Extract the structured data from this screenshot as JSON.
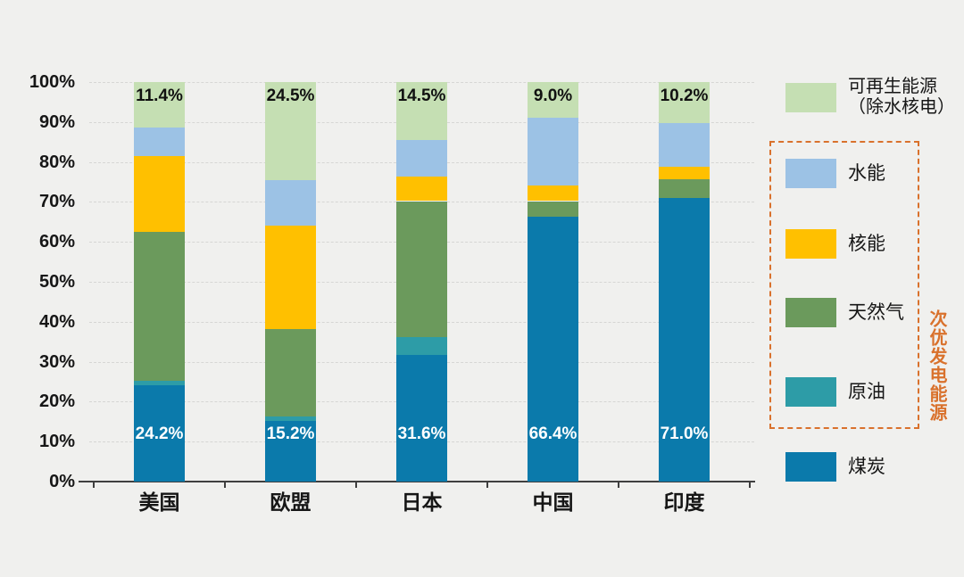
{
  "chart_data": {
    "type": "bar",
    "stacked": true,
    "unit": "%",
    "categories": [
      "美国",
      "欧盟",
      "日本",
      "中国",
      "印度"
    ],
    "series": [
      {
        "key": "coal",
        "name": "煤炭",
        "color": "#0B7AAB",
        "values": [
          24.2,
          15.2,
          31.6,
          66.4,
          71.0
        ]
      },
      {
        "key": "oil",
        "name": "原油",
        "color": "#2D9CA7",
        "values": [
          1.1,
          1.0,
          4.6,
          0.0,
          0.0
        ]
      },
      {
        "key": "gas",
        "name": "天然气",
        "color": "#6B9A5C",
        "values": [
          37.2,
          22.0,
          34.0,
          3.8,
          4.7
        ]
      },
      {
        "key": "nuclear",
        "name": "核能",
        "color": "#FFC000",
        "values": [
          18.9,
          25.8,
          6.1,
          3.8,
          3.0
        ]
      },
      {
        "key": "hydro",
        "name": "水能",
        "color": "#9CC2E5",
        "values": [
          7.2,
          11.5,
          9.2,
          17.0,
          11.1
        ]
      },
      {
        "key": "renewables",
        "name": "可再生能源（除水核电）",
        "color": "#C5DFB3",
        "values": [
          11.4,
          24.5,
          14.5,
          9.0,
          10.2
        ]
      }
    ],
    "data_labels": {
      "top": [
        "11.4%",
        "24.5%",
        "14.5%",
        "9.0%",
        "10.2%"
      ],
      "bottom": [
        "24.2%",
        "15.2%",
        "31.6%",
        "66.4%",
        "71.0%"
      ]
    },
    "y_axis": {
      "min": 0,
      "max": 100,
      "step": 10,
      "tick_labels": [
        "0%",
        "10%",
        "20%",
        "30%",
        "40%",
        "50%",
        "60%",
        "70%",
        "80%",
        "90%",
        "100%"
      ]
    },
    "grid": true,
    "legend_position": "right"
  },
  "legend": {
    "renewables": {
      "label_line1": "可再生能源",
      "label_line2": "（除水核电）",
      "color": "#C5DFB3"
    },
    "hydro": {
      "label": "水能",
      "color": "#9CC2E5"
    },
    "nuclear": {
      "label": "核能",
      "color": "#FFC000"
    },
    "gas": {
      "label": "天然气",
      "color": "#6B9A5C"
    },
    "oil": {
      "label": "原油",
      "color": "#2D9CA7"
    },
    "coal": {
      "label": "煤炭",
      "color": "#0B7AAB"
    },
    "group_annotation": "次优发电能源",
    "annotation_color": "#D9712C"
  },
  "colors": {
    "background": "#F0F0EE",
    "gridline": "#D6D6D4",
    "axis": "#3F3F3F",
    "label_dark": "#161616",
    "label_light": "#FFFFFF",
    "accent_orange": "#D9712C"
  }
}
